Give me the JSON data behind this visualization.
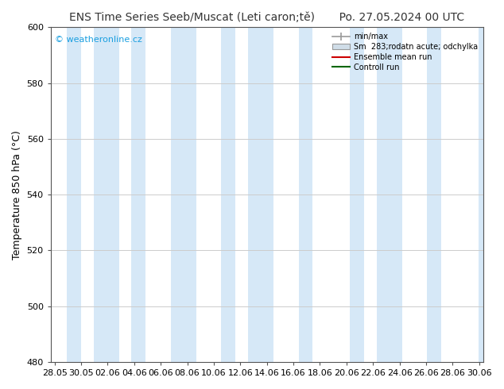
{
  "title": "ENS Time Series Seeb/Muscat (Leti caron;tě)       Po. 27.05.2024 00 UTC",
  "ylabel": "Temperature 850 hPa (°C)",
  "watermark": "© weatheronline.cz",
  "watermark_color": "#1a9fe0",
  "ylim": [
    480,
    600
  ],
  "yticks": [
    480,
    500,
    520,
    540,
    560,
    580,
    600
  ],
  "xtick_labels": [
    "28.05",
    "30.05",
    "02.06",
    "04.06",
    "06.06",
    "08.06",
    "10.06",
    "12.06",
    "14.06",
    "16.06",
    "18.06",
    "20.06",
    "22.06",
    "24.06",
    "26.06",
    "28.06",
    "30.06"
  ],
  "background_color": "#ffffff",
  "plot_bg_color": "#ffffff",
  "shaded_band_color": "#d6e8f7",
  "legend_entries": [
    {
      "label": "min/max",
      "color": "#aaaaaa",
      "style": "errbar"
    },
    {
      "label": "Sm  283;rodatn acute; odchylka",
      "color": "#c8dcf0",
      "style": "box"
    },
    {
      "label": "Ensemble mean run",
      "color": "#cc0000",
      "style": "line"
    },
    {
      "label": "Controll run",
      "color": "#006600",
      "style": "line"
    }
  ],
  "title_fontsize": 10,
  "axis_fontsize": 9,
  "tick_fontsize": 8,
  "grid_color": "#cccccc",
  "border_color": "#555555",
  "shaded_x_starts": [
    0.96,
    3.04,
    5.96,
    9.04,
    12.96,
    15.04,
    18.96,
    22.96,
    25.04,
    28.96,
    32.96
  ],
  "shaded_x_ends": [
    2.04,
    5.04,
    7.04,
    11.04,
    14.04,
    17.04,
    20.04,
    24.04,
    27.04,
    30.04,
    34.04
  ]
}
